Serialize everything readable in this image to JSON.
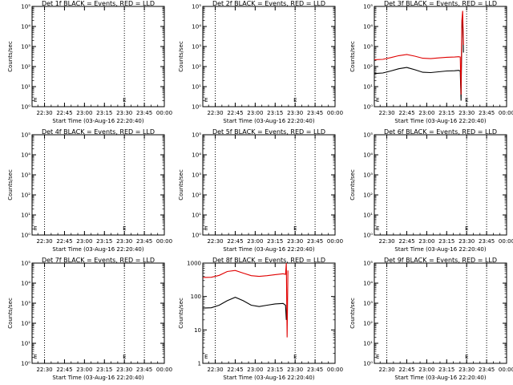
{
  "chart_data": [
    {
      "panel": "det-1f",
      "type": "line",
      "title": "Det 1f BLACK = Events, RED = LLD",
      "xlabel": "Start Time (03-Aug-16 22:20:40)",
      "ylabel": "Counts/sec",
      "x_tick_labels": [
        "22:30",
        "22:45",
        "23:00",
        "23:15",
        "23:30",
        "23:45",
        "00:00"
      ],
      "y_tick_labels": [
        "10⁰",
        "10¹",
        "10²",
        "10³",
        "10⁴",
        "10⁵"
      ],
      "ylog": true,
      "xlim": [
        22.344,
        24.0
      ],
      "ylim": [
        1,
        100000
      ],
      "vlines": [
        22.5,
        23.5,
        23.75
      ],
      "annotation": "E",
      "series": []
    },
    {
      "panel": "det-2f",
      "type": "line",
      "title": "Det 2f BLACK = Events, RED = LLD",
      "xlabel": "Start Time (03-Aug-16 22:20:40)",
      "ylabel": "Counts/sec",
      "x_tick_labels": [
        "22:30",
        "22:45",
        "23:00",
        "23:15",
        "23:30",
        "23:45",
        "00:00"
      ],
      "y_tick_labels": [
        "10⁰",
        "10¹",
        "10²",
        "10³",
        "10⁴",
        "10⁵"
      ],
      "ylog": true,
      "xlim": [
        22.344,
        24.0
      ],
      "ylim": [
        1,
        100000
      ],
      "vlines": [
        22.5,
        23.5,
        23.75
      ],
      "annotation": "E",
      "series": []
    },
    {
      "panel": "det-3f",
      "type": "line",
      "title": "Det 3f BLACK = Events, RED = LLD",
      "xlabel": "Start Time (03-Aug-16 22:20:40)",
      "ylabel": "Counts/sec",
      "x_tick_labels": [
        "22:30",
        "22:45",
        "23:00",
        "23:15",
        "23:30",
        "23:45",
        "00:00"
      ],
      "y_tick_labels": [
        "10⁰",
        "10¹",
        "10²",
        "10³",
        "10⁴",
        "10⁵"
      ],
      "ylog": true,
      "xlim": [
        22.344,
        24.0
      ],
      "ylim": [
        1,
        100000
      ],
      "vlines": [
        22.5,
        23.5,
        23.75
      ],
      "annotation": "E",
      "series": [
        {
          "color": "#000000",
          "x": [
            22.344,
            22.45,
            22.55,
            22.65,
            22.75,
            22.85,
            22.95,
            23.05,
            23.15,
            23.25,
            23.35,
            23.4,
            23.42,
            23.43,
            23.44,
            23.45,
            23.46
          ],
          "y": [
            45,
            48,
            60,
            78,
            90,
            70,
            52,
            50,
            55,
            60,
            62,
            65,
            60,
            2,
            8000,
            30000,
            500
          ]
        },
        {
          "color": "#e00000",
          "x": [
            22.344,
            22.45,
            22.55,
            22.65,
            22.75,
            22.85,
            22.95,
            23.05,
            23.15,
            23.25,
            23.35,
            23.4,
            23.42,
            23.43,
            23.44,
            23.45,
            23.46
          ],
          "y": [
            220,
            230,
            280,
            350,
            400,
            330,
            260,
            250,
            270,
            290,
            300,
            310,
            300,
            4,
            20000,
            60000,
            1200
          ]
        }
      ]
    },
    {
      "panel": "det-4f",
      "type": "line",
      "title": "Det 4f BLACK = Events, RED = LLD",
      "xlabel": "Start Time (03-Aug-16 22:20:40)",
      "ylabel": "Counts/sec",
      "x_tick_labels": [
        "22:30",
        "22:45",
        "23:00",
        "23:15",
        "23:30",
        "23:45",
        "00:00"
      ],
      "y_tick_labels": [
        "10⁰",
        "10¹",
        "10²",
        "10³",
        "10⁴",
        "10⁵"
      ],
      "ylog": true,
      "xlim": [
        22.344,
        24.0
      ],
      "ylim": [
        1,
        100000
      ],
      "vlines": [
        22.5,
        23.5,
        23.75
      ],
      "annotation": "E",
      "series": []
    },
    {
      "panel": "det-5f",
      "type": "line",
      "title": "Det 5f BLACK = Events, RED = LLD",
      "xlabel": "Start Time (03-Aug-16 22:20:40)",
      "ylabel": "Counts/sec",
      "x_tick_labels": [
        "22:30",
        "22:45",
        "23:00",
        "23:15",
        "23:30",
        "23:45",
        "00:00"
      ],
      "y_tick_labels": [
        "10⁰",
        "10¹",
        "10²",
        "10³",
        "10⁴",
        "10⁵"
      ],
      "ylog": true,
      "xlim": [
        22.344,
        24.0
      ],
      "ylim": [
        1,
        100000
      ],
      "vlines": [
        22.5,
        23.5,
        23.75
      ],
      "annotation": "E",
      "series": []
    },
    {
      "panel": "det-6f",
      "type": "line",
      "title": "Det 6f BLACK = Events, RED = LLD",
      "xlabel": "Start Time (03-Aug-16 22:20:40)",
      "ylabel": "Counts/sec",
      "x_tick_labels": [
        "22:30",
        "22:45",
        "23:00",
        "23:15",
        "23:30",
        "23:45",
        "00:00"
      ],
      "y_tick_labels": [
        "10⁰",
        "10¹",
        "10²",
        "10³",
        "10⁴",
        "10⁵"
      ],
      "ylog": true,
      "xlim": [
        22.344,
        24.0
      ],
      "ylim": [
        1,
        100000
      ],
      "vlines": [
        22.5,
        23.5,
        23.75
      ],
      "annotation": "E",
      "series": []
    },
    {
      "panel": "det-7f",
      "type": "line",
      "title": "Det 7f BLACK = Events, RED = LLD",
      "xlabel": "Start Time (03-Aug-16 22:20:40)",
      "ylabel": "Counts/sec",
      "x_tick_labels": [
        "22:30",
        "22:45",
        "23:00",
        "23:15",
        "23:30",
        "23:45",
        "00:00"
      ],
      "y_tick_labels": [
        "10⁰",
        "10¹",
        "10²",
        "10³",
        "10⁴",
        "10⁵"
      ],
      "ylog": true,
      "xlim": [
        22.344,
        24.0
      ],
      "ylim": [
        1,
        100000
      ],
      "vlines": [
        22.5,
        23.5,
        23.75
      ],
      "annotation": "E",
      "series": []
    },
    {
      "panel": "det-8f",
      "type": "line",
      "title": "Det 8f BLACK = Events, RED = LLD",
      "xlabel": "Start Time (03-Aug-16 22:20:40)",
      "ylabel": "Counts/sec",
      "x_tick_labels": [
        "22:30",
        "22:45",
        "23:00",
        "23:15",
        "23:30",
        "23:45",
        "00:00"
      ],
      "y_tick_labels": [
        "1",
        "10",
        "100",
        "1000"
      ],
      "ylog": true,
      "xlim": [
        22.344,
        24.0
      ],
      "ylim": [
        1,
        1000
      ],
      "vlines": [
        22.5,
        23.5,
        23.75
      ],
      "annotation": "E",
      "series": [
        {
          "color": "#000000",
          "x": [
            22.344,
            22.45,
            22.55,
            22.65,
            22.75,
            22.85,
            22.95,
            23.05,
            23.15,
            23.25,
            23.35,
            23.38,
            23.39,
            23.4
          ],
          "y": [
            45,
            46,
            55,
            75,
            95,
            75,
            55,
            50,
            55,
            60,
            62,
            55,
            20,
            60
          ]
        },
        {
          "color": "#e00000",
          "x": [
            22.344,
            22.45,
            22.55,
            22.65,
            22.75,
            22.85,
            22.95,
            23.05,
            23.15,
            23.25,
            23.35,
            23.38,
            23.39,
            23.4,
            23.41
          ],
          "y": [
            370,
            375,
            430,
            560,
            600,
            500,
            420,
            400,
            420,
            450,
            480,
            460,
            2000,
            6,
            600
          ]
        }
      ]
    },
    {
      "panel": "det-9f",
      "type": "line",
      "title": "Det 9f BLACK = Events, RED = LLD",
      "xlabel": "Start Time (03-Aug-16 22:20:40)",
      "ylabel": "Counts/sec",
      "x_tick_labels": [
        "22:30",
        "22:45",
        "23:00",
        "23:15",
        "23:30",
        "23:45",
        "00:00"
      ],
      "y_tick_labels": [
        "10⁰",
        "10¹",
        "10²",
        "10³",
        "10⁴",
        "10⁵"
      ],
      "ylog": true,
      "xlim": [
        22.344,
        24.0
      ],
      "ylim": [
        1,
        100000
      ],
      "vlines": [
        22.5,
        23.5,
        23.75
      ],
      "annotation": "E",
      "series": []
    }
  ]
}
